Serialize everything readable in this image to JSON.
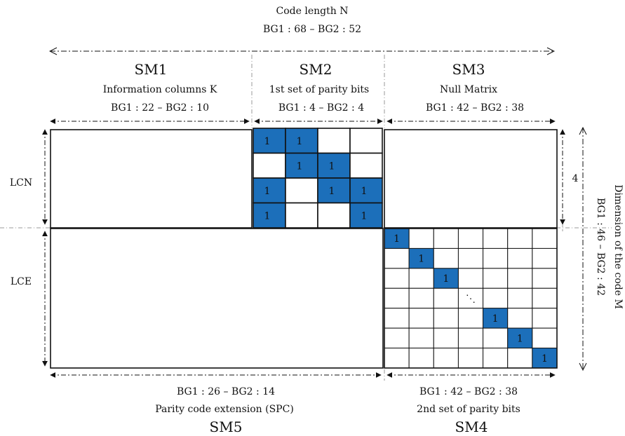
{
  "header": {
    "title": "Code length N",
    "value": "BG1 : 68 – BG2 : 52"
  },
  "sections": {
    "sm1": {
      "label": "SM1",
      "desc": "Information columns K",
      "value": "BG1 : 22 – BG2 : 10"
    },
    "sm2": {
      "label": "SM2",
      "desc": "1st set of parity bits",
      "value": "BG1 : 4 – BG2 : 4"
    },
    "sm3": {
      "label": "SM3",
      "desc": "Null Matrix",
      "value": "BG1 : 42 – BG2 : 38"
    },
    "sm4": {
      "label": "SM4",
      "desc": "2nd set of parity bits",
      "value": "BG1 : 42 – BG2 : 38"
    },
    "sm5": {
      "label": "SM5",
      "desc": "Parity code extension (SPC)",
      "value": "BG1 : 26 – BG2 : 14"
    }
  },
  "rows": {
    "lcn": "LCN",
    "lce": "LCE"
  },
  "right": {
    "four": "4",
    "dimension_title": "Dimension of the code M",
    "dimension_value": "BG1 : 46 – BG2 : 42"
  },
  "colors": {
    "filled": "#1c6fba",
    "line": "#111111",
    "guide": "#999999"
  },
  "sm2_matrix": [
    [
      1,
      1,
      0,
      0
    ],
    [
      0,
      1,
      1,
      0
    ],
    [
      1,
      0,
      1,
      1
    ],
    [
      1,
      0,
      0,
      1
    ]
  ],
  "sm4_matrix": {
    "size": 7,
    "diagonal_ones_rows": [
      0,
      1,
      2,
      4,
      5,
      6
    ],
    "ellipsis_row": 3,
    "cell_value": "1",
    "ellipsis_symbol": "⋱"
  }
}
